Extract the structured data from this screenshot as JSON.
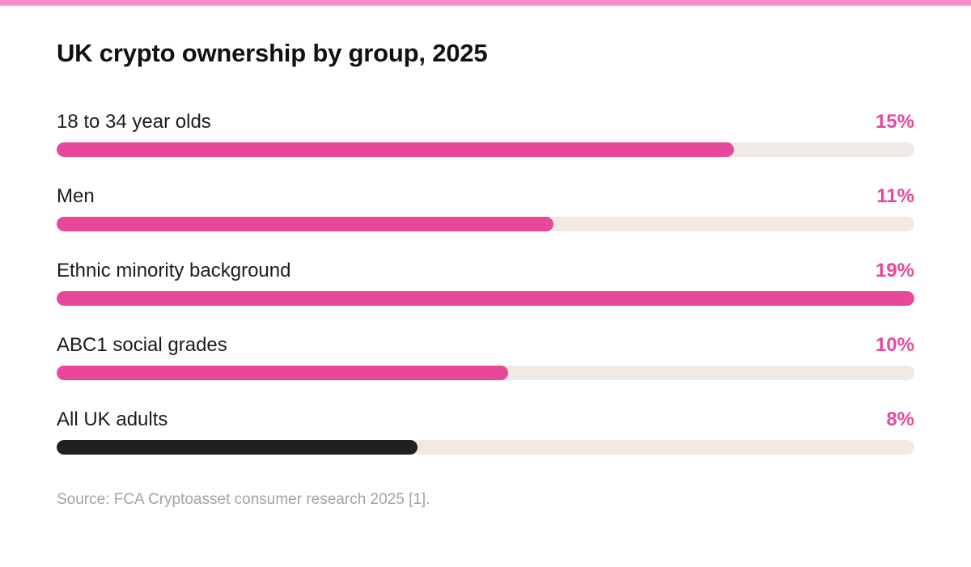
{
  "accent_color": "#e8479a",
  "baseline_color": "#231f20",
  "track_color": "#f1e9e4",
  "stripe_color": "#fb8fcb",
  "source": "Source: FCA Cryptoasset consumer research 2025 [1].",
  "chart_data": {
    "type": "bar",
    "orientation": "horizontal",
    "title": "UK crypto ownership by group, 2025",
    "categories": [
      "18 to 34 year olds",
      "Men",
      "Ethnic minority background",
      "ABC1 social grades",
      "All UK adults"
    ],
    "values": [
      15,
      11,
      19,
      10,
      8
    ],
    "value_labels": [
      "15%",
      "11%",
      "19%",
      "10%",
      "8%"
    ],
    "highlight": [
      true,
      true,
      true,
      true,
      false
    ],
    "xlim": [
      0,
      19
    ],
    "grid": false,
    "legend": "none"
  }
}
